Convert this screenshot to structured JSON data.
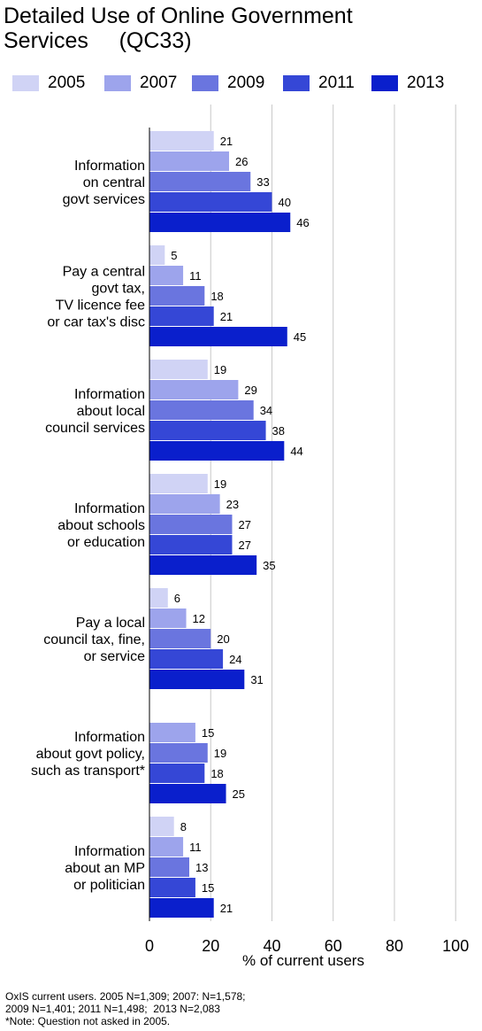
{
  "title_line1": "Detailed Use of Online Government",
  "title_line2": "Services     (QC33)",
  "colors": {
    "2005": "#d0d3f5",
    "2007": "#9da4ec",
    "2009": "#6a75df",
    "2011": "#3547d6",
    "2013": "#0a1fcc",
    "gridline": "#c8c8c8"
  },
  "chart_data": {
    "type": "bar",
    "orientation": "horizontal",
    "title": "Detailed Use of Online Government Services     (QC33)",
    "xlabel": "% of current users",
    "ylabel": "",
    "xlim": [
      0,
      100
    ],
    "xticks": [
      "0",
      "20",
      "40",
      "60",
      "80",
      "100"
    ],
    "grid": true,
    "legend_position": "top",
    "categories": [
      [
        "Information",
        "on central",
        "govt services"
      ],
      [
        "Pay a central",
        "govt tax,",
        "TV licence fee",
        "or car tax's disc"
      ],
      [
        "Information",
        "about local",
        "council services"
      ],
      [
        "Information",
        "about schools",
        "or education"
      ],
      [
        "Pay a local",
        "council tax, fine,",
        "or service"
      ],
      [
        "Information",
        "about govt policy,",
        "such as transport*"
      ],
      [
        "Information",
        "about an MP",
        "or politician"
      ]
    ],
    "series": [
      {
        "name": "2005",
        "values": [
          21,
          5,
          19,
          19,
          6,
          null,
          8
        ]
      },
      {
        "name": "2007",
        "values": [
          26,
          11,
          29,
          23,
          12,
          15,
          11
        ]
      },
      {
        "name": "2009",
        "values": [
          33,
          18,
          34,
          27,
          20,
          19,
          13
        ]
      },
      {
        "name": "2011",
        "values": [
          40,
          21,
          38,
          27,
          24,
          18,
          15
        ]
      },
      {
        "name": "2013",
        "values": [
          46,
          45,
          44,
          35,
          31,
          25,
          21
        ]
      }
    ]
  },
  "footnote": {
    "line1": "OxIS current users. 2005 N=1,309; 2007: N=1,578;",
    "line2": "2009 N=1,401; 2011 N=1,498;  2013 N=2,083",
    "line3": "*Note: Question not asked in 2005."
  }
}
